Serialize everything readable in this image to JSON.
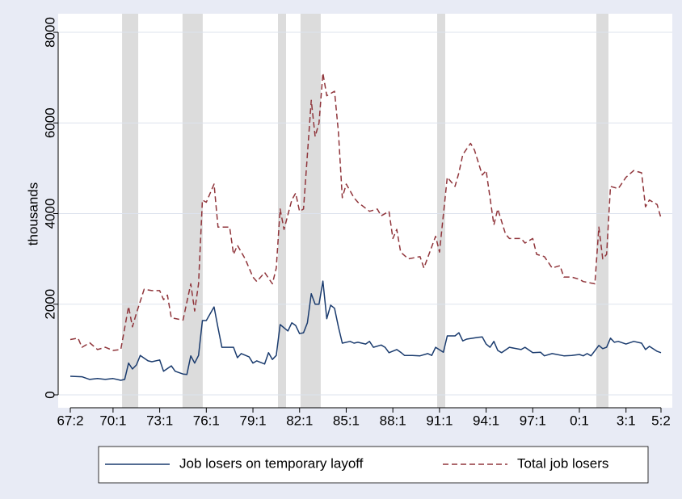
{
  "chart_data": {
    "type": "line",
    "ylabel": "thousands",
    "xlim": [
      1967.25,
      2005.25
    ],
    "xticks": [
      {
        "value": 1967.25,
        "label": "67:2"
      },
      {
        "value": 1970,
        "label": "70:1"
      },
      {
        "value": 1973,
        "label": "73:1"
      },
      {
        "value": 1976,
        "label": "76:1"
      },
      {
        "value": 1979,
        "label": "79:1"
      },
      {
        "value": 1982,
        "label": "82:1"
      },
      {
        "value": 1985,
        "label": "85:1"
      },
      {
        "value": 1988,
        "label": "88:1"
      },
      {
        "value": 1991,
        "label": "91:1"
      },
      {
        "value": 1994,
        "label": "94:1"
      },
      {
        "value": 1997,
        "label": "97:1"
      },
      {
        "value": 2000,
        "label": "0:1"
      },
      {
        "value": 2003,
        "label": "3:1"
      },
      {
        "value": 2005.25,
        "label": "5:2"
      }
    ],
    "ylim": [
      0,
      8000
    ],
    "yticks": [
      0,
      2000,
      4000,
      6000,
      8000
    ],
    "grid": true,
    "shaded_periods": [
      [
        1970.58,
        1971.62
      ],
      [
        1974.47,
        1975.77
      ],
      [
        1980.61,
        1981.13
      ],
      [
        1982.06,
        1983.36
      ],
      [
        1990.85,
        1991.37
      ],
      [
        2001.09,
        2001.87
      ]
    ],
    "series": [
      {
        "name": "Job losers on temporary layoff",
        "color": "#1a3b6e",
        "dash": false,
        "x": [
          1967.25,
          1968,
          1968.5,
          1969,
          1969.5,
          1970,
          1970.5,
          1970.75,
          1971,
          1971.25,
          1971.5,
          1971.75,
          1972.25,
          1972.5,
          1973,
          1973.25,
          1973.75,
          1974,
          1974.5,
          1974.75,
          1975,
          1975.25,
          1975.5,
          1975.75,
          1976,
          1976.5,
          1976.75,
          1977,
          1977.75,
          1978,
          1978.25,
          1978.75,
          1979,
          1979.25,
          1979.75,
          1980,
          1980.25,
          1980.5,
          1980.75,
          1981.25,
          1981.5,
          1981.75,
          1982,
          1982.25,
          1982.5,
          1982.75,
          1983,
          1983.25,
          1983.5,
          1983.75,
          1984,
          1984.25,
          1984.5,
          1984.75,
          1985.25,
          1985.5,
          1985.75,
          1986.25,
          1986.5,
          1986.75,
          1987.25,
          1987.5,
          1987.75,
          1988.25,
          1988.5,
          1988.75,
          1989.25,
          1989.75,
          1990.25,
          1990.5,
          1990.75,
          1991.25,
          1991.5,
          1992,
          1992.25,
          1992.5,
          1992.75,
          1993.5,
          1993.75,
          1994,
          1994.25,
          1994.5,
          1994.75,
          1995,
          1995.5,
          1996.25,
          1996.5,
          1997,
          1997.5,
          1997.75,
          1998.25,
          1999,
          1999.5,
          2000,
          2000.25,
          2000.5,
          2000.75,
          2001.25,
          2001.5,
          2001.75,
          2002,
          2002.25,
          2002.5,
          2003,
          2003.5,
          2004,
          2004.25,
          2004.5,
          2005,
          2005.25
        ],
        "values": [
          410,
          400,
          340,
          360,
          340,
          360,
          320,
          340,
          700,
          570,
          660,
          870,
          750,
          730,
          770,
          520,
          640,
          520,
          460,
          450,
          860,
          700,
          870,
          1640,
          1640,
          1940,
          1480,
          1050,
          1050,
          820,
          910,
          840,
          700,
          750,
          680,
          930,
          780,
          870,
          1550,
          1410,
          1590,
          1530,
          1350,
          1370,
          1590,
          2230,
          2000,
          2000,
          2510,
          1680,
          1980,
          1910,
          1500,
          1140,
          1180,
          1140,
          1160,
          1120,
          1180,
          1050,
          1100,
          1050,
          930,
          1000,
          940,
          870,
          870,
          860,
          910,
          870,
          1050,
          940,
          1300,
          1300,
          1370,
          1190,
          1230,
          1270,
          1280,
          1120,
          1050,
          1180,
          980,
          930,
          1050,
          1000,
          1050,
          930,
          940,
          860,
          910,
          860,
          870,
          890,
          860,
          910,
          860,
          1090,
          1020,
          1050,
          1250,
          1160,
          1180,
          1120,
          1180,
          1140,
          1000,
          1070,
          960,
          930
        ]
      },
      {
        "name": "Total job losers",
        "color": "#90353b",
        "dash": true,
        "x": [
          1967.25,
          1967.75,
          1968,
          1968.5,
          1969,
          1969.5,
          1970,
          1970.5,
          1971,
          1971.25,
          1971.5,
          1972,
          1972.5,
          1973,
          1973.25,
          1973.5,
          1973.75,
          1974.5,
          1975,
          1975.25,
          1975.5,
          1975.75,
          1976,
          1976.5,
          1976.75,
          1977.5,
          1977.75,
          1978,
          1978.5,
          1979,
          1979.25,
          1979.75,
          1980.25,
          1980.5,
          1980.75,
          1981,
          1981.5,
          1981.75,
          1982,
          1982.25,
          1982.75,
          1983,
          1983.25,
          1983.5,
          1983.75,
          1984.25,
          1984.5,
          1984.75,
          1985,
          1985.5,
          1985.75,
          1986.5,
          1987,
          1987.25,
          1987.75,
          1988,
          1988.25,
          1988.5,
          1989,
          1989.75,
          1990,
          1990.75,
          1991,
          1991.5,
          1992,
          1992.25,
          1992.5,
          1993,
          1993.25,
          1993.75,
          1994,
          1994.5,
          1994.75,
          1995.25,
          1995.5,
          1996.25,
          1996.5,
          1997,
          1997.25,
          1997.75,
          1998.25,
          1998.75,
          1999,
          1999.5,
          2000,
          2000.25,
          2001,
          2001.25,
          2001.5,
          2001.75,
          2002,
          2002.5,
          2003,
          2003.5,
          2004,
          2004.25,
          2004.5,
          2005,
          2005.25
        ],
        "values": [
          1220,
          1250,
          1050,
          1150,
          1000,
          1050,
          980,
          1000,
          1950,
          1500,
          1800,
          2330,
          2300,
          2300,
          2100,
          2200,
          1700,
          1650,
          2450,
          1850,
          2450,
          4300,
          4250,
          4650,
          3700,
          3700,
          3100,
          3300,
          3000,
          2600,
          2500,
          2700,
          2450,
          2800,
          4100,
          3650,
          4300,
          4450,
          4050,
          4100,
          6500,
          5700,
          6000,
          7100,
          6600,
          6700,
          5800,
          4350,
          4650,
          4350,
          4250,
          4050,
          4100,
          3950,
          4050,
          3450,
          3650,
          3150,
          3000,
          3050,
          2800,
          3500,
          3150,
          4800,
          4600,
          4900,
          5300,
          5550,
          5400,
          4850,
          4950,
          3750,
          4100,
          3550,
          3450,
          3450,
          3350,
          3450,
          3100,
          3050,
          2800,
          2850,
          2600,
          2600,
          2550,
          2500,
          2450,
          3700,
          3000,
          3100,
          4600,
          4550,
          4800,
          4950,
          4900,
          4150,
          4300,
          4200,
          3900
        ]
      }
    ]
  }
}
